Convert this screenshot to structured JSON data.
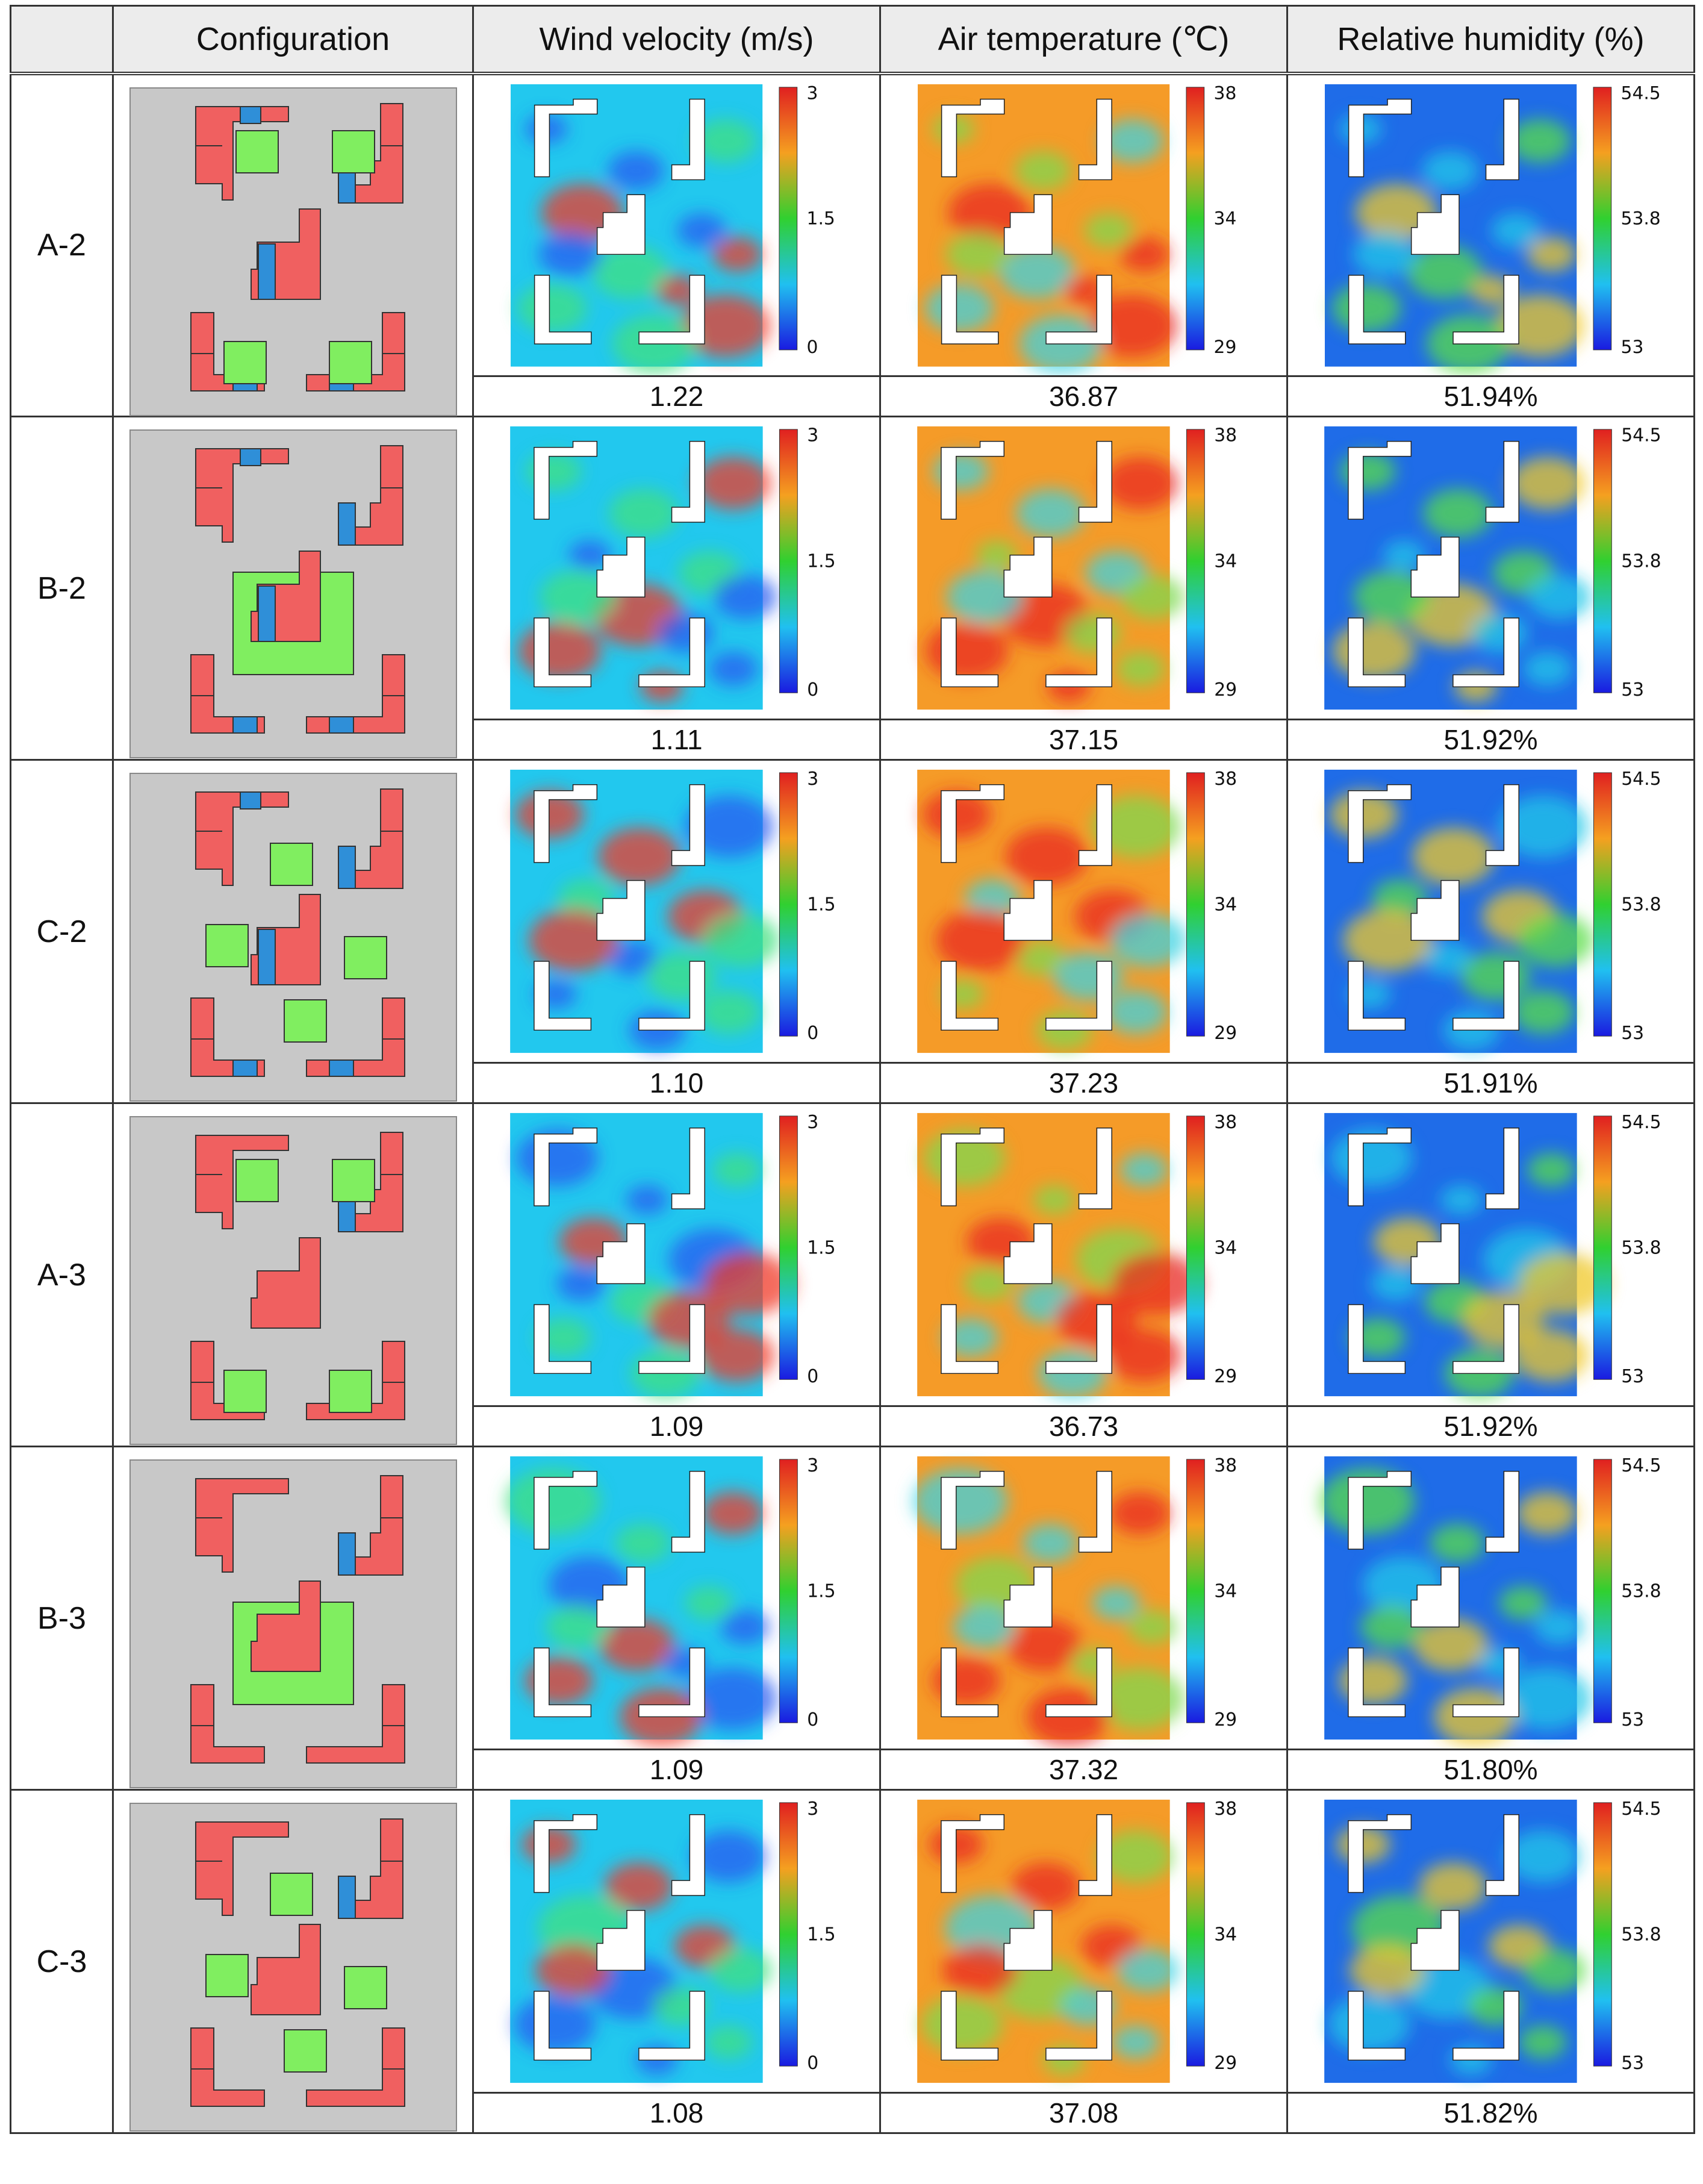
{
  "table": {
    "headers": {
      "configuration": "Configuration",
      "wind": "Wind velocity (m/s)",
      "temp": "Air temperature (℃)",
      "humidity": "Relative humidity (%)"
    },
    "scales": {
      "wind": {
        "max": "3",
        "mid": "1.5",
        "min": "0"
      },
      "temp": {
        "max": "38",
        "mid": "34",
        "min": "29"
      },
      "humidity": {
        "max": "54.5",
        "mid": "53.8",
        "min": "53"
      }
    },
    "colors": {
      "building": "#f06060",
      "green": "#80ee60",
      "water": "#2f8fd8",
      "site": "#c8c8c8"
    },
    "rows": [
      {
        "id": "A-2",
        "wind": "1.22",
        "temp": "36.87",
        "humidity": "51.94%"
      },
      {
        "id": "B-2",
        "wind": "1.11",
        "temp": "37.15",
        "humidity": "51.92%"
      },
      {
        "id": "C-2",
        "wind": "1.10",
        "temp": "37.23",
        "humidity": "51.91%"
      },
      {
        "id": "A-3",
        "wind": "1.09",
        "temp": "36.73",
        "humidity": "51.92%"
      },
      {
        "id": "B-3",
        "wind": "1.09",
        "temp": "37.32",
        "humidity": "51.80%"
      },
      {
        "id": "C-3",
        "wind": "1.08",
        "temp": "37.08",
        "humidity": "51.82%"
      }
    ]
  }
}
